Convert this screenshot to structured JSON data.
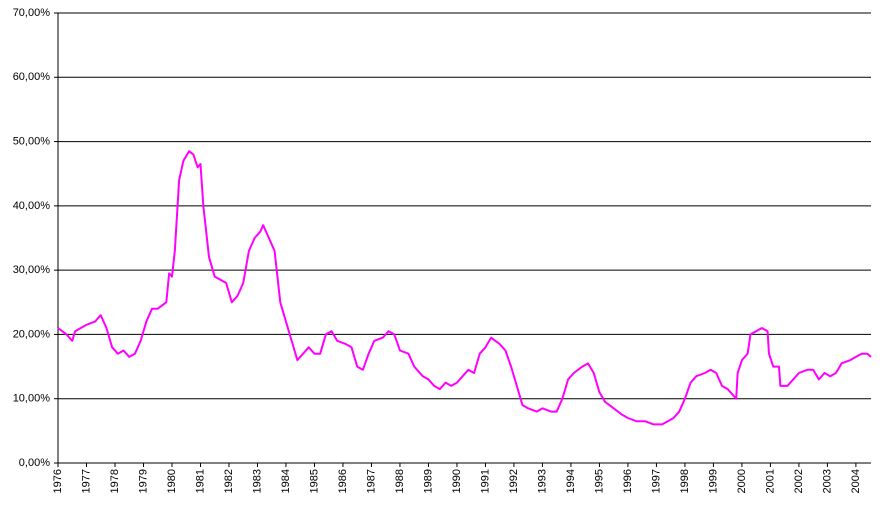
{
  "chart_data": {
    "type": "line",
    "color": "#ff00ff",
    "grid": true,
    "xlim": [
      1976,
      2004.53
    ],
    "xticks": [
      1976,
      1977,
      1978,
      1979,
      1980,
      1981,
      1982,
      1983,
      1984,
      1985,
      1986,
      1987,
      1988,
      1989,
      1990,
      1991,
      1992,
      1993,
      1994,
      1995,
      1996,
      1997,
      1998,
      1999,
      2000,
      2001,
      2002,
      2003,
      2004
    ],
    "ylim": [
      0,
      70
    ],
    "yticks": [
      {
        "value": 0,
        "label": "0,00%"
      },
      {
        "value": 10,
        "label": "10,00%"
      },
      {
        "value": 20,
        "label": "20,00%"
      },
      {
        "value": 30,
        "label": "30,00%"
      },
      {
        "value": 40,
        "label": "40,00%"
      },
      {
        "value": 50,
        "label": "50,00%"
      },
      {
        "value": 60,
        "label": "60,00%"
      },
      {
        "value": 70,
        "label": "70,00%"
      }
    ],
    "x": [
      1976.0,
      1976.3,
      1976.5,
      1976.6,
      1976.8,
      1977.0,
      1977.3,
      1977.5,
      1977.7,
      1977.9,
      1978.1,
      1978.3,
      1978.5,
      1978.7,
      1978.9,
      1979.1,
      1979.3,
      1979.5,
      1979.8,
      1979.9,
      1980.0,
      1980.1,
      1980.25,
      1980.4,
      1980.6,
      1980.75,
      1980.9,
      1981.0,
      1981.1,
      1981.3,
      1981.5,
      1981.7,
      1981.9,
      1982.1,
      1982.3,
      1982.5,
      1982.7,
      1982.9,
      1983.1,
      1983.2,
      1983.4,
      1983.6,
      1983.8,
      1984.0,
      1984.2,
      1984.4,
      1984.6,
      1984.8,
      1985.0,
      1985.2,
      1985.4,
      1985.6,
      1985.8,
      1986.1,
      1986.3,
      1986.5,
      1986.7,
      1986.9,
      1987.1,
      1987.4,
      1987.6,
      1987.8,
      1988.0,
      1988.3,
      1988.5,
      1988.8,
      1989.0,
      1989.2,
      1989.4,
      1989.6,
      1989.8,
      1990.0,
      1990.2,
      1990.4,
      1990.6,
      1990.8,
      1991.0,
      1991.2,
      1991.5,
      1991.7,
      1991.9,
      1992.1,
      1992.3,
      1992.5,
      1992.8,
      1993.0,
      1993.3,
      1993.5,
      1993.7,
      1993.9,
      1994.1,
      1994.4,
      1994.6,
      1994.8,
      1995.0,
      1995.2,
      1995.5,
      1995.8,
      1996.0,
      1996.3,
      1996.6,
      1996.9,
      1997.2,
      1997.4,
      1997.6,
      1997.8,
      1998.0,
      1998.2,
      1998.4,
      1998.7,
      1998.9,
      1999.1,
      1999.3,
      1999.5,
      1999.7,
      1999.8,
      1999.85,
      2000.0,
      2000.2,
      2000.3,
      2000.5,
      2000.7,
      2000.9,
      2000.95,
      2001.1,
      2001.3,
      2001.35,
      2001.6,
      2001.8,
      2002.0,
      2002.3,
      2002.5,
      2002.7,
      2002.9,
      2003.1,
      2003.3,
      2003.5,
      2003.8,
      2004.0,
      2004.2,
      2004.4,
      2004.53
    ],
    "values": [
      21,
      20,
      19,
      20.5,
      21,
      21.5,
      22,
      23,
      21,
      18,
      17,
      17.5,
      16.5,
      17,
      19,
      22,
      24,
      24,
      25,
      29.5,
      29,
      33,
      44,
      47,
      48.5,
      48,
      46,
      46.5,
      40,
      32,
      29,
      28.5,
      28,
      25,
      26,
      28,
      33,
      35,
      36,
      37,
      35,
      33,
      25,
      22,
      19,
      16,
      17,
      18,
      17,
      17,
      20,
      20.5,
      19,
      18.5,
      18,
      15,
      14.5,
      17,
      19,
      19.5,
      20.5,
      20,
      17.5,
      17,
      15,
      13.5,
      13,
      12,
      11.5,
      12.5,
      12,
      12.5,
      13.5,
      14.5,
      14,
      17,
      18,
      19.5,
      18.5,
      17.5,
      15,
      12,
      9,
      8.5,
      8,
      8.5,
      8,
      8,
      10,
      13,
      14,
      15,
      15.5,
      14,
      11,
      9.5,
      8.5,
      7.5,
      7,
      6.5,
      6.5,
      6,
      6,
      6.5,
      7,
      8,
      10,
      12.5,
      13.5,
      14,
      14.5,
      14,
      12,
      11.5,
      10.5,
      10,
      14,
      16,
      17,
      20,
      20.5,
      21,
      20.5,
      17,
      15,
      15,
      12,
      12,
      13,
      14,
      14.5,
      14.5,
      13,
      14,
      13.5,
      14,
      15.5,
      16,
      16.5,
      17,
      17,
      16.5
    ]
  }
}
